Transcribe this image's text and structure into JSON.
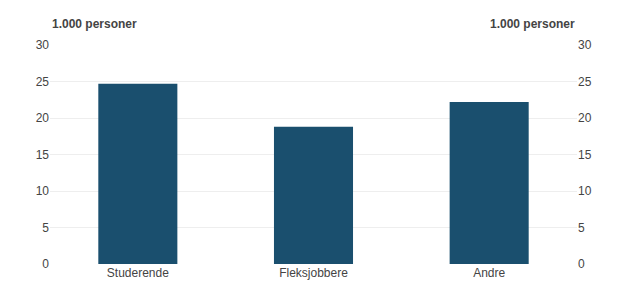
{
  "chart_data": {
    "type": "bar",
    "categories": [
      "Studerende",
      "Fleksjobbere",
      "Andre"
    ],
    "values": [
      24.7,
      18.8,
      22.2
    ],
    "color": "#1a4f6e",
    "ylabel": "1.000 personer",
    "y2label": "1.000 personer",
    "ylim": [
      0,
      30
    ],
    "yticks": [
      0,
      5,
      10,
      15,
      20,
      25,
      30
    ],
    "y2lim": [
      0,
      30
    ],
    "y2ticks": [
      0,
      5,
      10,
      15,
      20,
      25,
      30
    ],
    "grid": true
  }
}
